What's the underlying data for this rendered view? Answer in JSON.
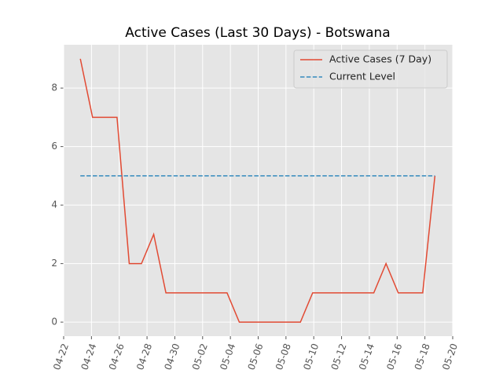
{
  "chart_data": {
    "type": "line",
    "title": "Active Cases (Last 30 Days) - Botswana",
    "series": [
      {
        "name": "Active Cases (7 Day)",
        "color": "#e24a33",
        "linestyle": "solid",
        "x": [
          1.2,
          2.08,
          2.96,
          3.84,
          4.72,
          5.6,
          6.48,
          7.36,
          8.24,
          9.12,
          10,
          10.88,
          11.76,
          12.64,
          13.52,
          14.4,
          15.28,
          16.16,
          17.04,
          17.92,
          18.8,
          19.68,
          20.56,
          21.44,
          22.32,
          23.2,
          24.08,
          24.96,
          25.84,
          26.72
        ],
        "values": [
          9,
          7,
          7,
          7,
          2,
          2,
          3,
          1,
          1,
          1,
          1,
          1,
          1,
          0,
          0,
          0,
          0,
          0,
          0,
          1,
          1,
          1,
          1,
          1,
          1,
          2,
          1,
          1,
          1,
          5
        ]
      },
      {
        "name": "Current Level",
        "color": "#348abd",
        "linestyle": "dashed",
        "x": [
          1.2,
          26.72
        ],
        "values": [
          5,
          5
        ]
      }
    ],
    "xlim": [
      0,
      28
    ],
    "xticks": [
      {
        "value": 0,
        "label": "04-22"
      },
      {
        "value": 2,
        "label": "04-24"
      },
      {
        "value": 4,
        "label": "04-26"
      },
      {
        "value": 6,
        "label": "04-28"
      },
      {
        "value": 8,
        "label": "04-30"
      },
      {
        "value": 10,
        "label": "05-02"
      },
      {
        "value": 12,
        "label": "05-04"
      },
      {
        "value": 14,
        "label": "05-06"
      },
      {
        "value": 16,
        "label": "05-08"
      },
      {
        "value": 18,
        "label": "05-10"
      },
      {
        "value": 20,
        "label": "05-12"
      },
      {
        "value": 22,
        "label": "05-14"
      },
      {
        "value": 24,
        "label": "05-16"
      },
      {
        "value": 26,
        "label": "05-18"
      },
      {
        "value": 28,
        "label": "05-20"
      }
    ],
    "ylim": [
      -0.48,
      9.48
    ],
    "yticks": [
      0,
      2,
      4,
      6,
      8
    ],
    "grid": true,
    "legend": "upper right"
  }
}
